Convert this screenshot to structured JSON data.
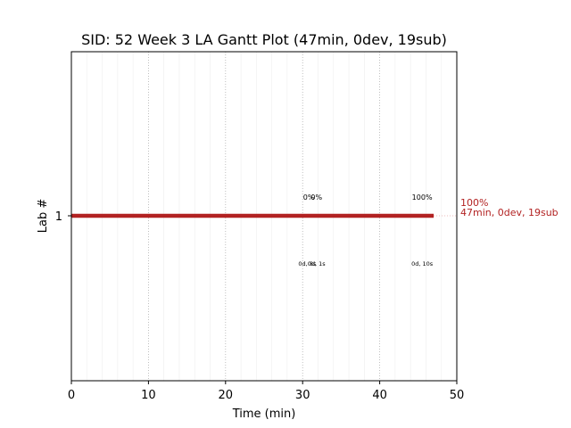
{
  "chart_data": {
    "type": "gantt",
    "title": "SID: 52 Week 3 LA Gantt Plot (47min, 0dev, 19sub)",
    "xlabel": "Time (min)",
    "ylabel": "Lab #",
    "xlim": [
      0,
      50
    ],
    "xticks": [
      0,
      10,
      20,
      30,
      40,
      50
    ],
    "major_grid_x": [
      10,
      20,
      30,
      40
    ],
    "minor_grid_step": 2,
    "categories": [
      "1"
    ],
    "bar_color": "#b22222",
    "series": [
      {
        "category": "1",
        "start": 0,
        "end": 47,
        "end_label_line1": "100%",
        "end_label_line2": "47min, 0dev, 19sub"
      }
    ],
    "annotations": [
      {
        "x": 30.8,
        "text": "0%",
        "position": "above"
      },
      {
        "x": 31.8,
        "text": "0%",
        "position": "above"
      },
      {
        "x": 45.5,
        "text": "100%",
        "position": "above"
      },
      {
        "x": 30.6,
        "text": "0d, 8s",
        "position": "below"
      },
      {
        "x": 31.8,
        "text": "0d, 1s",
        "position": "below"
      },
      {
        "x": 45.5,
        "text": "0d, 10s",
        "position": "below"
      }
    ]
  }
}
